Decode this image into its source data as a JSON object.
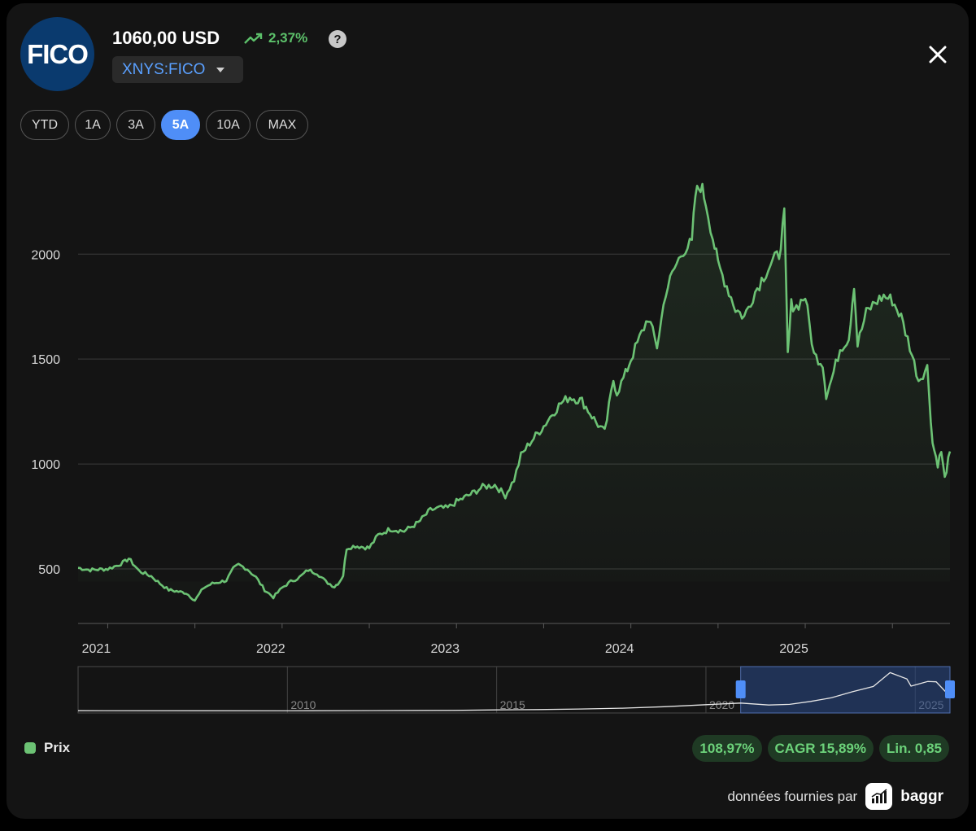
{
  "header": {
    "logo_text": "FICO",
    "price": "1060,00 USD",
    "change": "2,37%",
    "help_symbol": "?",
    "ticker": "XNYS:FICO"
  },
  "ranges": [
    {
      "label": "YTD",
      "active": false
    },
    {
      "label": "1A",
      "active": false
    },
    {
      "label": "3A",
      "active": false
    },
    {
      "label": "5A",
      "active": true
    },
    {
      "label": "10A",
      "active": false
    },
    {
      "label": "MAX",
      "active": false
    }
  ],
  "colors": {
    "line": "#6cc274",
    "accent": "#4f8ef7",
    "positive": "#5cc06a"
  },
  "chart_data": {
    "type": "line",
    "y_ticks": [
      "2000",
      "1500",
      "1000",
      "500"
    ],
    "x_ticks": [
      "2021",
      "2022",
      "2023",
      "2024",
      "2025"
    ],
    "ylim": [
      240,
      2420
    ],
    "xlim": [
      2020.83,
      2025.83
    ],
    "grid": true,
    "series": [
      {
        "name": "Prix",
        "points": [
          [
            2020.83,
            505
          ],
          [
            2020.9,
            495
          ],
          [
            2021.0,
            500
          ],
          [
            2021.05,
            515
          ],
          [
            2021.1,
            535
          ],
          [
            2021.12,
            550
          ],
          [
            2021.18,
            490
          ],
          [
            2021.25,
            465
          ],
          [
            2021.3,
            430
          ],
          [
            2021.35,
            400
          ],
          [
            2021.45,
            385
          ],
          [
            2021.5,
            350
          ],
          [
            2021.55,
            410
          ],
          [
            2021.6,
            430
          ],
          [
            2021.68,
            445
          ],
          [
            2021.72,
            500
          ],
          [
            2021.75,
            520
          ],
          [
            2021.8,
            500
          ],
          [
            2021.85,
            460
          ],
          [
            2021.9,
            400
          ],
          [
            2021.95,
            365
          ],
          [
            2022.0,
            410
          ],
          [
            2022.05,
            440
          ],
          [
            2022.1,
            460
          ],
          [
            2022.15,
            495
          ],
          [
            2022.2,
            480
          ],
          [
            2022.25,
            440
          ],
          [
            2022.3,
            415
          ],
          [
            2022.33,
            440
          ],
          [
            2022.35,
            470
          ],
          [
            2022.37,
            600
          ],
          [
            2022.42,
            610
          ],
          [
            2022.5,
            600
          ],
          [
            2022.55,
            660
          ],
          [
            2022.62,
            690
          ],
          [
            2022.7,
            680
          ],
          [
            2022.78,
            720
          ],
          [
            2022.85,
            780
          ],
          [
            2022.9,
            790
          ],
          [
            2022.95,
            790
          ],
          [
            2023.0,
            820
          ],
          [
            2023.08,
            855
          ],
          [
            2023.15,
            890
          ],
          [
            2023.22,
            900
          ],
          [
            2023.28,
            850
          ],
          [
            2023.33,
            925
          ],
          [
            2023.37,
            1040
          ],
          [
            2023.42,
            1100
          ],
          [
            2023.5,
            1180
          ],
          [
            2023.55,
            1240
          ],
          [
            2023.6,
            1290
          ],
          [
            2023.65,
            1320
          ],
          [
            2023.72,
            1300
          ],
          [
            2023.8,
            1200
          ],
          [
            2023.85,
            1150
          ],
          [
            2023.9,
            1400
          ],
          [
            2023.92,
            1340
          ],
          [
            2023.97,
            1430
          ],
          [
            2024.0,
            1500
          ],
          [
            2024.05,
            1600
          ],
          [
            2024.1,
            1700
          ],
          [
            2024.15,
            1560
          ],
          [
            2024.2,
            1820
          ],
          [
            2024.25,
            1930
          ],
          [
            2024.3,
            2020
          ],
          [
            2024.35,
            2050
          ],
          [
            2024.37,
            2280
          ],
          [
            2024.4,
            2330
          ],
          [
            2024.43,
            2250
          ],
          [
            2024.47,
            2080
          ],
          [
            2024.5,
            1950
          ],
          [
            2024.55,
            1850
          ],
          [
            2024.6,
            1740
          ],
          [
            2024.65,
            1700
          ],
          [
            2024.7,
            1800
          ],
          [
            2024.75,
            1880
          ],
          [
            2024.8,
            1950
          ],
          [
            2024.85,
            2000
          ],
          [
            2024.88,
            2180
          ],
          [
            2024.9,
            1520
          ],
          [
            2024.92,
            1760
          ],
          [
            2024.95,
            1750
          ],
          [
            2025.0,
            1800
          ],
          [
            2025.05,
            1520
          ],
          [
            2025.1,
            1480
          ],
          [
            2025.12,
            1330
          ],
          [
            2025.15,
            1400
          ],
          [
            2025.2,
            1550
          ],
          [
            2025.25,
            1600
          ],
          [
            2025.28,
            1860
          ],
          [
            2025.3,
            1570
          ],
          [
            2025.35,
            1720
          ],
          [
            2025.4,
            1770
          ],
          [
            2025.45,
            1800
          ],
          [
            2025.5,
            1780
          ],
          [
            2025.55,
            1700
          ],
          [
            2025.6,
            1560
          ],
          [
            2025.65,
            1400
          ],
          [
            2025.7,
            1460
          ],
          [
            2025.73,
            1100
          ],
          [
            2025.76,
            1000
          ],
          [
            2025.78,
            1060
          ],
          [
            2025.8,
            930
          ],
          [
            2025.83,
            1060
          ]
        ]
      }
    ]
  },
  "navigator": {
    "labels": [
      "2010",
      "2015",
      "2020",
      "2025"
    ],
    "selection": {
      "from": 2020.83,
      "to": 2025.83
    },
    "xlim": [
      2005,
      2025.83
    ],
    "points": [
      [
        2005,
        40
      ],
      [
        2008,
        35
      ],
      [
        2010,
        30
      ],
      [
        2012,
        45
      ],
      [
        2014,
        60
      ],
      [
        2015,
        90
      ],
      [
        2016,
        110
      ],
      [
        2017,
        140
      ],
      [
        2018,
        190
      ],
      [
        2019,
        280
      ],
      [
        2020,
        400
      ],
      [
        2020.83,
        500
      ],
      [
        2021.5,
        380
      ],
      [
        2022,
        420
      ],
      [
        2022.5,
        600
      ],
      [
        2023,
        820
      ],
      [
        2023.5,
        1180
      ],
      [
        2024,
        1500
      ],
      [
        2024.4,
        2330
      ],
      [
        2024.8,
        1950
      ],
      [
        2024.9,
        1520
      ],
      [
        2025.3,
        1800
      ],
      [
        2025.5,
        1780
      ],
      [
        2025.8,
        980
      ],
      [
        2025.83,
        1060
      ]
    ]
  },
  "legend": {
    "label": "Prix"
  },
  "stats": {
    "performance": "108,97%",
    "cagr": "CAGR 15,89%",
    "lin": "Lin. 0,85"
  },
  "footer": {
    "credit": "données fournies par",
    "brand": "baggr"
  }
}
